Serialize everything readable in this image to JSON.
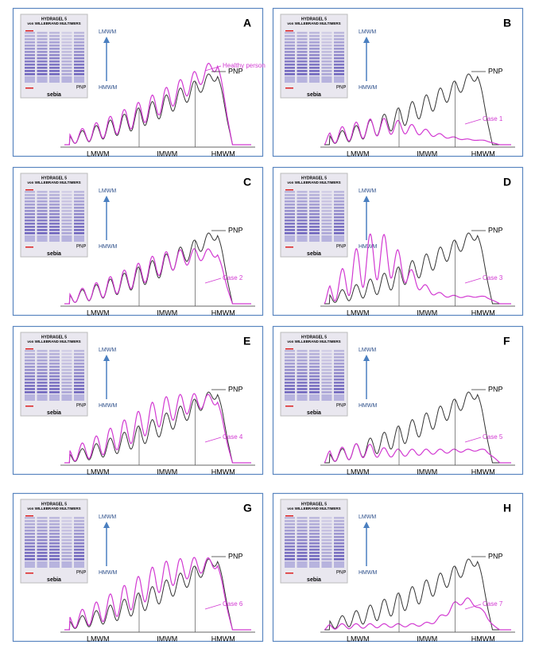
{
  "panels": [
    {
      "letter": "A",
      "gel_title": [
        "HYDRAGEL 5",
        "von WILLEBRAND MULTIMERS"
      ],
      "gel_top": "LMWM",
      "gel_bottom": "HMWM",
      "gel_pnp": "PNP",
      "brand": "sebia",
      "pnp_label": "PNP",
      "case_label": "Healthy person",
      "zones": [
        "LMWM",
        "IMWM",
        "HMWM"
      ]
    },
    {
      "letter": "B",
      "gel_title": [
        "HYDRAGEL 5",
        "von WILLEBRAND MULTIMERS"
      ],
      "gel_top": "LMWM",
      "gel_bottom": "HMWM",
      "gel_pnp": "PNP",
      "brand": "sebia",
      "pnp_label": "PNP",
      "case_label": "Case 1",
      "zones": [
        "LMWM",
        "IMWM",
        "HMWM"
      ]
    },
    {
      "letter": "C",
      "gel_title": [
        "HYDRAGEL 5",
        "von WILLEBRAND MULTIMERS"
      ],
      "gel_top": "LMWM",
      "gel_bottom": "HMWM",
      "gel_pnp": "PNP",
      "brand": "sebia",
      "pnp_label": "PNP",
      "case_label": "Case 2",
      "zones": [
        "LMWM",
        "IMWM",
        "HMWM"
      ]
    },
    {
      "letter": "D",
      "gel_title": [
        "HYDRAGEL 5",
        "von WILLEBRAND MULTIMERS"
      ],
      "gel_top": "LMWM",
      "gel_bottom": "HMWM",
      "gel_pnp": "PNP",
      "brand": "sebia",
      "pnp_label": "PNP",
      "case_label": "Case 3",
      "zones": [
        "LMWM",
        "IMWM",
        "HMWM"
      ]
    },
    {
      "letter": "E",
      "gel_title": [
        "HYDRAGEL 5",
        "von WILLEBRAND MULTIMERS"
      ],
      "gel_top": "LMWM",
      "gel_bottom": "HMWM",
      "gel_pnp": "PNP",
      "brand": "sebia",
      "pnp_label": "PNP",
      "case_label": "Case 4",
      "zones": [
        "LMWM",
        "IMWM",
        "HMWM"
      ]
    },
    {
      "letter": "F",
      "gel_title": [
        "HYDRAGEL 5",
        "von WILLEBRAND MULTIMERS"
      ],
      "gel_top": "LMWM",
      "gel_bottom": "HMWM",
      "gel_pnp": "PNP",
      "brand": "sebia",
      "pnp_label": "PNP",
      "case_label": "Case 5",
      "zones": [
        "LMWM",
        "IMWM",
        "HMWM"
      ]
    },
    {
      "letter": "G",
      "gel_title": [
        "HYDRAGEL 5",
        "von WILLEBRAND MULTIMERS"
      ],
      "gel_top": "LMWM",
      "gel_bottom": "HMWM",
      "gel_pnp": "PNP",
      "brand": "sebia",
      "pnp_label": "PNP",
      "case_label": "Case 6",
      "zones": [
        "LMWM",
        "IMWM",
        "HMWM"
      ]
    },
    {
      "letter": "H",
      "gel_title": [
        "HYDRAGEL 5",
        "von WILLEBRAND MULTIMERS"
      ],
      "gel_top": "LMWM",
      "gel_bottom": "HMWM",
      "gel_pnp": "PNP",
      "brand": "sebia",
      "pnp_label": "PNP",
      "case_label": "Case 7",
      "zones": [
        "LMWM",
        "IMWM",
        "HMWM"
      ]
    }
  ]
}
